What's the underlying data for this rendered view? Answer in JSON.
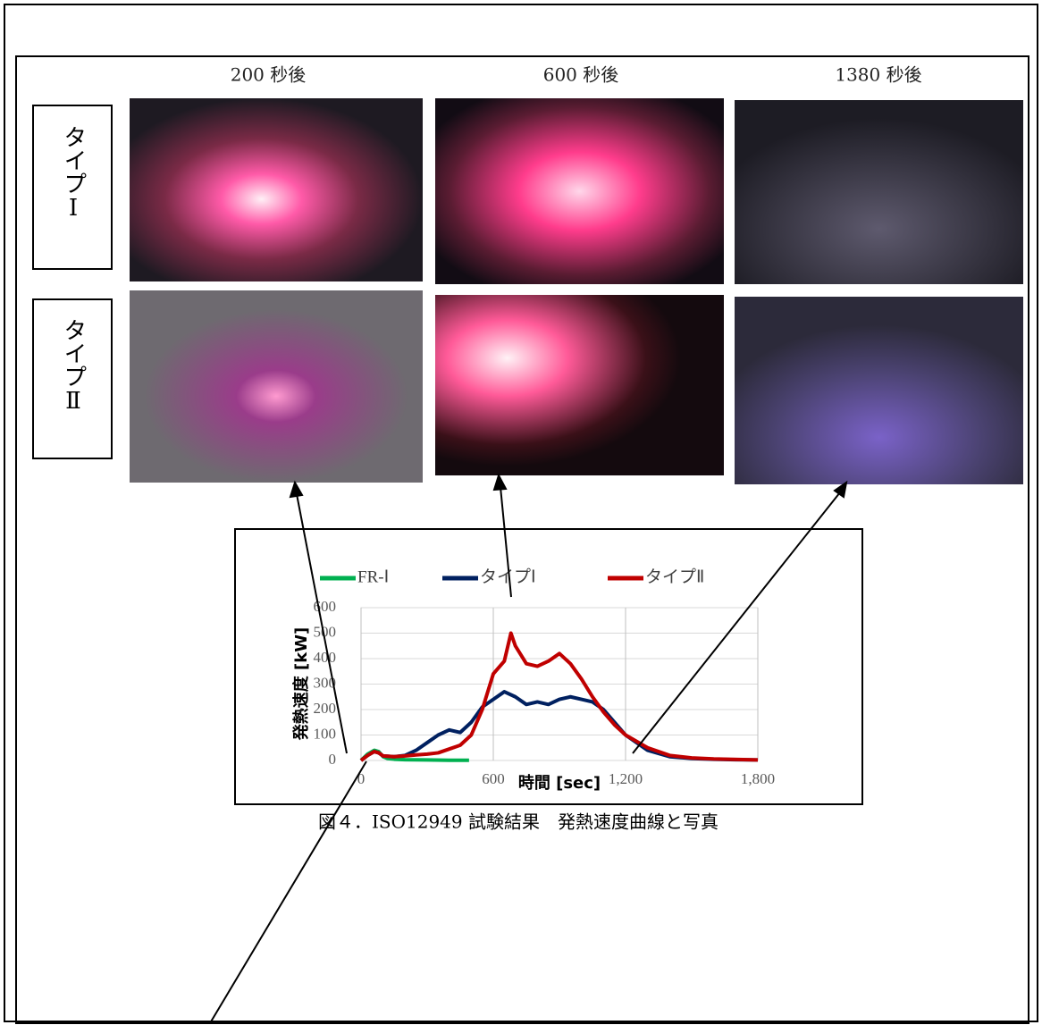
{
  "caption": "図４．ISO12949 試験結果　発熱速度曲線と写真",
  "photos": {
    "columns": [
      "200 秒後",
      "600 秒後",
      "1380 秒後"
    ],
    "rows": [
      "タイプⅠ",
      "タイプⅡ"
    ]
  },
  "chart_data": {
    "type": "line",
    "x_label": "時間 [sec]",
    "y_label": "発熱速度 [kW]",
    "xlim": [
      0,
      1800
    ],
    "xticks": [
      0,
      600,
      {
        "value": 1200,
        "label": "1,200"
      },
      {
        "value": 1800,
        "label": "1,800"
      }
    ],
    "ylim": [
      0,
      600
    ],
    "yticks": [
      0,
      100,
      200,
      300,
      400,
      500,
      600
    ],
    "grid": true,
    "legend": "top",
    "series": [
      {
        "name": "FR-Ⅰ",
        "color": "#00b050",
        "x": [
          0,
          30,
          60,
          80,
          100,
          120,
          150,
          200,
          300,
          400,
          490
        ],
        "values": [
          0,
          25,
          40,
          35,
          15,
          8,
          5,
          3,
          2,
          1,
          1
        ]
      },
      {
        "name": "タイプⅠ",
        "color": "#002060",
        "x": [
          0,
          30,
          60,
          80,
          100,
          150,
          200,
          250,
          300,
          350,
          400,
          450,
          500,
          550,
          600,
          650,
          700,
          750,
          800,
          850,
          900,
          950,
          1000,
          1050,
          1100,
          1150,
          1200,
          1300,
          1400,
          1500,
          1600,
          1700,
          1800
        ],
        "values": [
          0,
          20,
          35,
          30,
          18,
          15,
          20,
          40,
          70,
          100,
          120,
          110,
          150,
          210,
          240,
          270,
          250,
          220,
          230,
          220,
          240,
          250,
          240,
          230,
          200,
          150,
          100,
          40,
          15,
          8,
          5,
          3,
          2
        ]
      },
      {
        "name": "タイプⅡ",
        "color": "#c00000",
        "x": [
          0,
          30,
          60,
          80,
          100,
          150,
          200,
          250,
          300,
          350,
          400,
          450,
          500,
          550,
          600,
          650,
          680,
          700,
          750,
          800,
          850,
          900,
          950,
          1000,
          1050,
          1100,
          1150,
          1200,
          1300,
          1400,
          1500,
          1600,
          1800
        ],
        "values": [
          0,
          20,
          35,
          30,
          18,
          15,
          18,
          22,
          25,
          30,
          45,
          60,
          100,
          200,
          340,
          390,
          500,
          450,
          380,
          370,
          390,
          420,
          380,
          320,
          250,
          190,
          140,
          100,
          50,
          20,
          10,
          6,
          2
        ]
      }
    ]
  }
}
